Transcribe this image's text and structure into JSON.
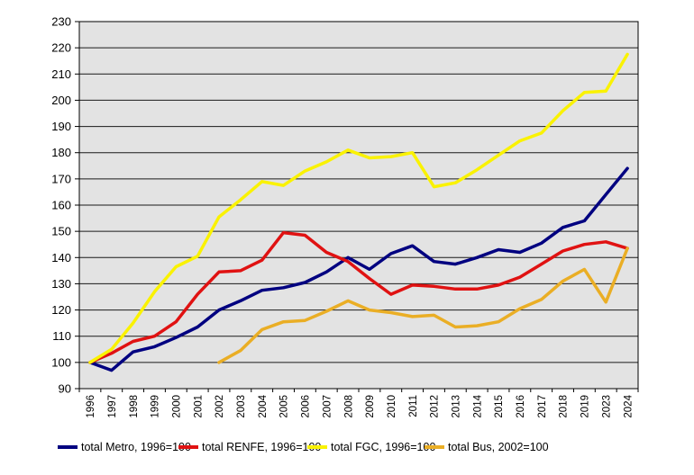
{
  "chart_data": {
    "type": "line",
    "title": "",
    "xlabel": "",
    "ylabel": "",
    "ylim": [
      90,
      230
    ],
    "ytick_step": 10,
    "grid": "horizontal",
    "grid_color": "#1a1a1a",
    "plot_bg": "#E3E3E3",
    "legend_position": "bottom",
    "categories": [
      "1996",
      "1997",
      "1998",
      "1999",
      "2000",
      "2001",
      "2002",
      "2003",
      "2004",
      "2005",
      "2006",
      "2007",
      "2008",
      "2009",
      "2010",
      "2011",
      "2012",
      "2013",
      "2014",
      "2015",
      "2016",
      "2017",
      "2018",
      "2019",
      "2023",
      "2024"
    ],
    "series": [
      {
        "name": "total Metro, 1996=100",
        "color": "#000080",
        "values": [
          100,
          97,
          104,
          106,
          109.5,
          113.5,
          120,
          123.5,
          127.5,
          128.5,
          130.5,
          134.5,
          140,
          135.5,
          141.5,
          144.5,
          138.5,
          137.5,
          140,
          143,
          142,
          145.5,
          151.5,
          154,
          164,
          174
        ]
      },
      {
        "name": "total RENFE, 1996=100",
        "color": "#E01212",
        "values": [
          100,
          103.5,
          108,
          110,
          115.5,
          126,
          134.5,
          135,
          139,
          149.5,
          148.5,
          142,
          138.5,
          132,
          126,
          129.5,
          129,
          128,
          128,
          129.5,
          132.5,
          137.5,
          142.5,
          145,
          146,
          143.5
        ]
      },
      {
        "name": "total FGC, 1996=100",
        "color": "#FAF202",
        "values": [
          100,
          105,
          115,
          127,
          136.5,
          140.5,
          155.5,
          162,
          169,
          167.5,
          173,
          176.5,
          181,
          178,
          178.5,
          180,
          167,
          168.5,
          173.5,
          179,
          184.5,
          187.5,
          196,
          203,
          203.5,
          217.5
        ]
      },
      {
        "name": "total Bus, 2002=100",
        "color": "#EAAE25",
        "values": [
          null,
          null,
          null,
          null,
          null,
          null,
          100,
          104.5,
          112.5,
          115.5,
          116,
          119.5,
          123.5,
          120,
          119,
          117.5,
          118,
          113.5,
          114,
          115.5,
          120.5,
          124,
          131,
          135.5,
          123,
          143.5
        ]
      }
    ]
  },
  "legend": {
    "items": [
      {
        "label": "total Metro, 1996=100"
      },
      {
        "label": "total RENFE, 1996=100"
      },
      {
        "label": "total FGC, 1996=100"
      },
      {
        "label": "total Bus, 2002=100"
      }
    ]
  }
}
